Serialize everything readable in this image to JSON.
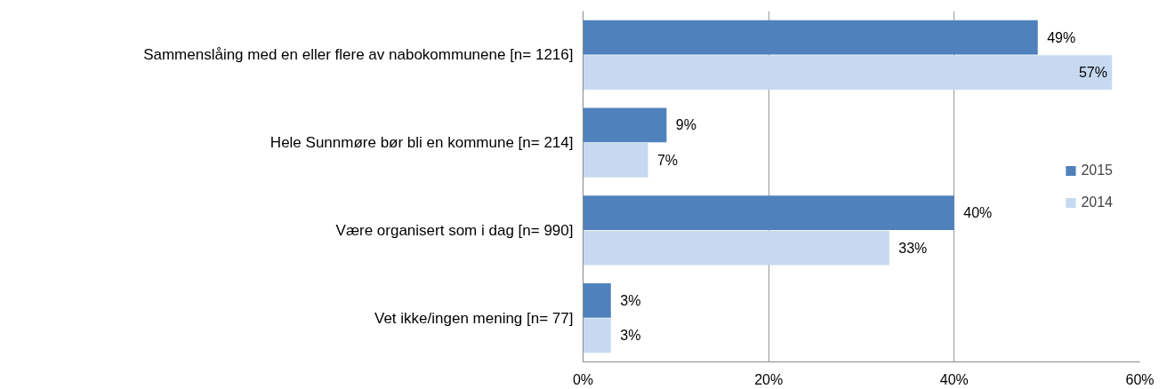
{
  "chart_data": {
    "type": "bar",
    "orientation": "horizontal",
    "categories": [
      "Sammenslåing med en eller flere av nabokommunene [n= 1216]",
      "Hele Sunnmøre bør bli en kommune [n= 214]",
      "Være organisert som i dag [n= 990]",
      "Vet ikke/ingen mening [n= 77]"
    ],
    "series": [
      {
        "name": "2015",
        "color": "#4f81bd",
        "values": [
          49,
          9,
          40,
          3
        ],
        "value_labels": [
          "49%",
          "9%",
          "40%",
          "3%"
        ]
      },
      {
        "name": "2014",
        "color": "#c6d9f1",
        "values": [
          57,
          7,
          33,
          3
        ],
        "value_labels": [
          "57%",
          "7%",
          "33%",
          "3%"
        ]
      }
    ],
    "xlim": [
      0,
      60
    ],
    "xticks": [
      {
        "value": 0,
        "label": "0%"
      },
      {
        "value": 20,
        "label": "20%"
      },
      {
        "value": 40,
        "label": "40%"
      },
      {
        "value": 60,
        "label": "60%"
      }
    ],
    "grid": "x",
    "legend": "right"
  }
}
